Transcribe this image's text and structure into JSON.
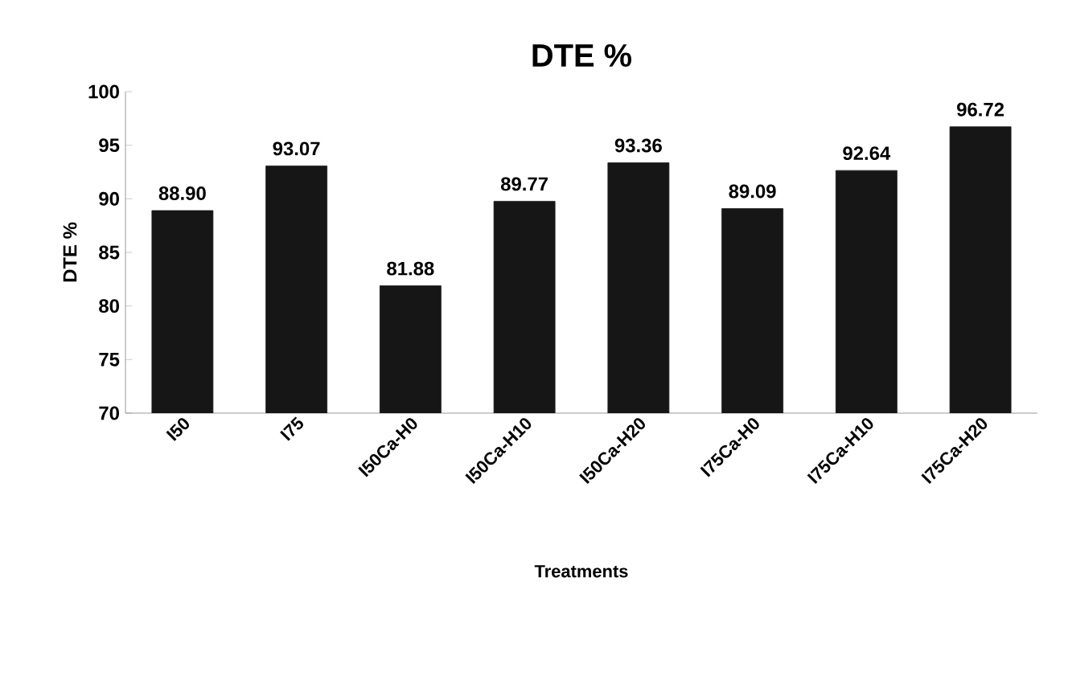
{
  "chart_data": {
    "type": "bar",
    "title": "DTE    %",
    "xlabel": "Treatments",
    "ylabel": "DTE    %",
    "categories": [
      "I50",
      "I75",
      "I50Ca-H0",
      "I50Ca-H10",
      "I50Ca-H20",
      "I75Ca-H0",
      "I75Ca-H10",
      "I75Ca-H20"
    ],
    "values": [
      88.9,
      93.07,
      81.88,
      89.77,
      93.36,
      89.09,
      92.64,
      96.72
    ],
    "value_labels": [
      "88.90",
      "93.07",
      "81.88",
      "89.77",
      "93.36",
      "89.09",
      "92.64",
      "96.72"
    ],
    "color": "#161616",
    "ylim": [
      70,
      100
    ],
    "yticks": [
      70,
      75,
      80,
      85,
      90,
      95,
      100
    ],
    "grid": false
  }
}
